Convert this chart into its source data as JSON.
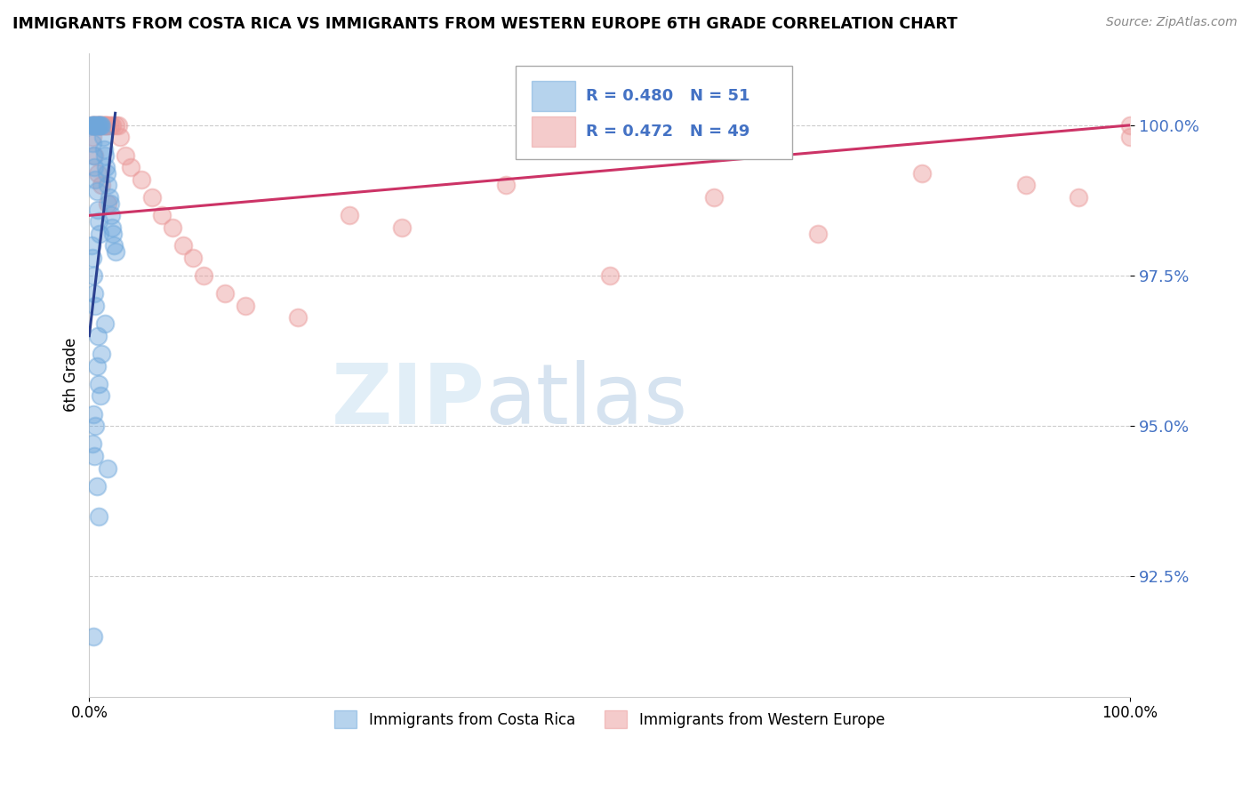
{
  "title": "IMMIGRANTS FROM COSTA RICA VS IMMIGRANTS FROM WESTERN EUROPE 6TH GRADE CORRELATION CHART",
  "source": "Source: ZipAtlas.com",
  "ylabel": "6th Grade",
  "xlim": [
    0,
    100
  ],
  "ylim": [
    90.5,
    101.2
  ],
  "yticks": [
    92.5,
    95.0,
    97.5,
    100.0
  ],
  "ytick_labels": [
    "92.5%",
    "95.0%",
    "97.5%",
    "100.0%"
  ],
  "blue_label": "Immigrants from Costa Rica",
  "pink_label": "Immigrants from Western Europe",
  "blue_R": "0.480",
  "blue_N": "51",
  "pink_R": "0.472",
  "pink_N": "49",
  "blue_color": "#6fa8dc",
  "pink_color": "#ea9999",
  "blue_trend_color": "#2a4090",
  "pink_trend_color": "#cc3366",
  "blue_x": [
    0.2,
    0.3,
    0.4,
    0.5,
    0.6,
    0.7,
    0.8,
    0.9,
    1.0,
    1.1,
    1.2,
    1.3,
    1.4,
    1.5,
    1.6,
    1.7,
    1.8,
    1.9,
    2.0,
    2.1,
    2.2,
    2.3,
    2.4,
    2.5,
    0.3,
    0.4,
    0.5,
    0.6,
    0.7,
    0.8,
    0.9,
    1.0,
    0.2,
    0.3,
    0.4,
    0.5,
    0.6,
    1.5,
    0.8,
    1.2,
    0.7,
    0.9,
    1.1,
    0.4,
    0.6,
    0.3,
    0.5,
    1.8,
    0.7,
    0.9,
    0.4
  ],
  "blue_y": [
    100.0,
    100.0,
    100.0,
    100.0,
    100.0,
    100.0,
    100.0,
    100.0,
    100.0,
    100.0,
    100.0,
    99.8,
    99.6,
    99.5,
    99.3,
    99.2,
    99.0,
    98.8,
    98.7,
    98.5,
    98.3,
    98.2,
    98.0,
    97.9,
    99.7,
    99.5,
    99.3,
    99.1,
    98.9,
    98.6,
    98.4,
    98.2,
    98.0,
    97.8,
    97.5,
    97.2,
    97.0,
    96.7,
    96.5,
    96.2,
    96.0,
    95.7,
    95.5,
    95.2,
    95.0,
    94.7,
    94.5,
    94.3,
    94.0,
    93.5,
    91.5
  ],
  "pink_x": [
    0.2,
    0.4,
    0.5,
    0.6,
    0.7,
    0.8,
    0.9,
    1.0,
    1.1,
    1.2,
    1.3,
    1.4,
    1.5,
    1.6,
    1.7,
    1.8,
    2.0,
    2.2,
    2.5,
    2.8,
    3.0,
    3.5,
    4.0,
    5.0,
    6.0,
    7.0,
    8.0,
    9.0,
    10.0,
    11.0,
    13.0,
    15.0,
    20.0,
    25.0,
    30.0,
    40.0,
    50.0,
    60.0,
    70.0,
    80.0,
    90.0,
    95.0,
    100.0,
    0.3,
    0.5,
    0.8,
    1.2,
    1.8,
    100.0
  ],
  "pink_y": [
    100.0,
    100.0,
    100.0,
    100.0,
    100.0,
    100.0,
    100.0,
    100.0,
    100.0,
    100.0,
    100.0,
    100.0,
    100.0,
    100.0,
    100.0,
    100.0,
    100.0,
    100.0,
    100.0,
    100.0,
    99.8,
    99.5,
    99.3,
    99.1,
    98.8,
    98.5,
    98.3,
    98.0,
    97.8,
    97.5,
    97.2,
    97.0,
    96.8,
    98.5,
    98.3,
    99.0,
    97.5,
    98.8,
    98.2,
    99.2,
    99.0,
    98.8,
    100.0,
    99.8,
    99.5,
    99.2,
    99.0,
    98.7,
    99.8
  ],
  "blue_trend_x": [
    0.0,
    2.5
  ],
  "blue_trend_y": [
    96.5,
    100.2
  ],
  "pink_trend_x": [
    0.0,
    100.0
  ],
  "pink_trend_y": [
    98.5,
    100.0
  ]
}
